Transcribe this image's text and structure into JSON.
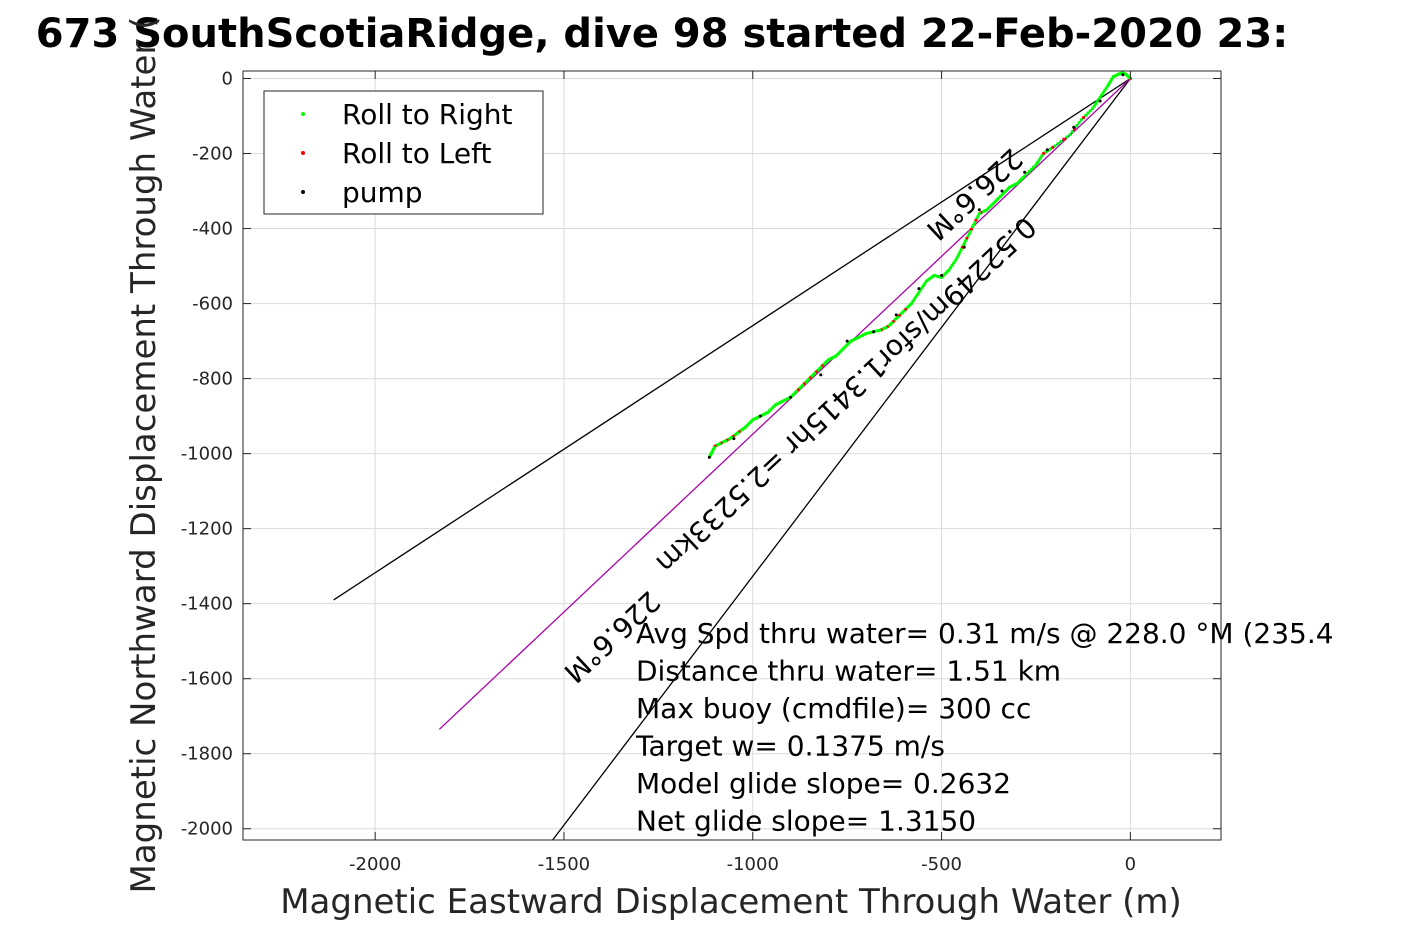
{
  "chart_data": {
    "type": "line",
    "title": "673 SouthScotiaRidge, dive 98 started 22-Feb-2020 23:",
    "xlabel": "Magnetic Eastward Displacement Through Water (m)",
    "ylabel": "Magnetic Northward Displacement Through Water (",
    "xlim": [
      -2350,
      240
    ],
    "ylim": [
      -2030,
      20
    ],
    "xticks": [
      -2000,
      -1500,
      -1000,
      -500,
      0
    ],
    "yticks": [
      0,
      -200,
      -400,
      -600,
      -800,
      -1000,
      -1200,
      -1400,
      -1600,
      -1800,
      -2000
    ],
    "xtick_labels": [
      "-2000",
      "-1500",
      "-1000",
      "-500",
      "0"
    ],
    "ytick_labels": [
      "0",
      "-200",
      "-400",
      "-600",
      "-800",
      "-1000",
      "-1200",
      "-1400",
      "-1600",
      "-1800",
      "-2000"
    ],
    "grid": true,
    "legend": {
      "placement": "top-left",
      "entries": [
        {
          "label": "Roll to Right",
          "color": "#00ff00"
        },
        {
          "label": "Roll to Left",
          "color": "#ff0000"
        },
        {
          "label": "pump",
          "color": "#000000"
        }
      ]
    },
    "track": {
      "color": "#0000ff",
      "x": [
        0,
        -10,
        -20,
        -30,
        -45,
        -60,
        -80,
        -100,
        -130,
        -160,
        -200,
        -230,
        -250,
        -280,
        -300,
        -320,
        -340,
        -360,
        -380,
        -400,
        -415,
        -430,
        -445,
        -460,
        -480,
        -500,
        -520,
        -540,
        -560,
        -580,
        -600,
        -620,
        -640,
        -660,
        -680,
        -700,
        -720,
        -740,
        -760,
        -780,
        -800,
        -820,
        -840,
        -860,
        -880,
        -900,
        -920,
        -940,
        -960,
        -980,
        -1000,
        -1020,
        -1040,
        -1060,
        -1080,
        -1100,
        -1110,
        -1115
      ],
      "y": [
        0,
        10,
        15,
        12,
        5,
        -20,
        -50,
        -80,
        -110,
        -150,
        -180,
        -200,
        -230,
        -260,
        -280,
        -290,
        -310,
        -330,
        -350,
        -360,
        -390,
        -420,
        -450,
        -480,
        -510,
        -530,
        -525,
        -540,
        -570,
        -600,
        -620,
        -640,
        -660,
        -670,
        -675,
        -680,
        -690,
        -700,
        -720,
        -740,
        -750,
        -770,
        -790,
        -810,
        -830,
        -850,
        -860,
        -870,
        -890,
        -900,
        -910,
        -930,
        -945,
        -960,
        -970,
        -980,
        -1000,
        -1010
      ]
    },
    "pump_points": {
      "x": [
        -1115,
        -1050,
        -980,
        -900,
        -820,
        -750,
        -680,
        -620,
        -560,
        -500,
        -440,
        -400,
        -340,
        -280,
        -220,
        -150,
        -80,
        -20
      ],
      "y": [
        -1010,
        -960,
        -900,
        -850,
        -790,
        -700,
        -675,
        -630,
        -560,
        -525,
        -450,
        -350,
        -300,
        -250,
        -190,
        -130,
        -60,
        10
      ]
    },
    "lines": [
      {
        "name": "",
        "color": "#000000",
        "x": [
          0,
          -2110
        ],
        "y": [
          0,
          -1390
        ]
      },
      {
        "name": "",
        "color": "#000000",
        "x": [
          0,
          -1530
        ],
        "y": [
          0,
          -2030
        ]
      },
      {
        "name": "",
        "color": "#aa00aa",
        "x": [
          0,
          -1830
        ],
        "y": [
          0,
          -1735
        ]
      }
    ],
    "line_labels": [
      {
        "text": "226.6°M",
        "x": -1390,
        "y": -1470,
        "angle": 137
      },
      {
        "text": "0.52249m/sfor1.3415hr =2.5233km",
        "x": -770,
        "y": -825,
        "angle": 137
      },
      {
        "text": "226.6°M",
        "x": -430,
        "y": -290,
        "angle": 137
      }
    ],
    "annotations": [
      "Avg Spd thru water=  0.31 m/s @ 228.0 °M (235.4",
      "Distance thru water=  1.51 km",
      "Max buoy (cmdfile)= 300 cc",
      "Target w= 0.1375 m/s",
      "Model glide slope= 0.2632",
      "Net glide slope= 1.3150"
    ]
  }
}
